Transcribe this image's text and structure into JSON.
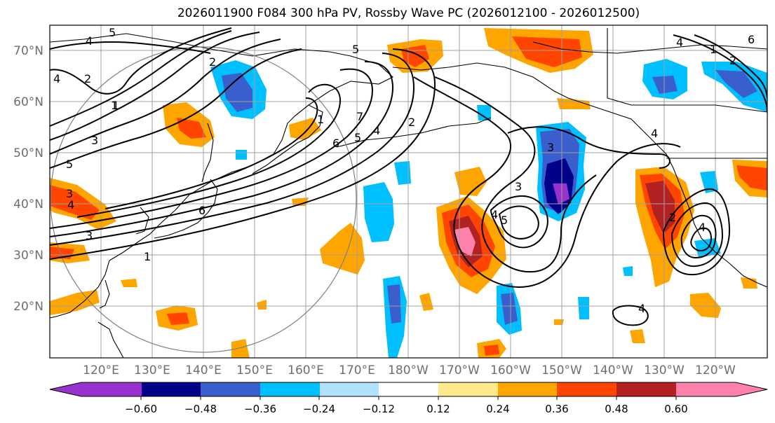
{
  "title": "2026011900 F084 300 hPa PV, Rossby Wave PC (2026012100 - 2026012500)",
  "latitude_labels": [
    "70°N",
    "60°N",
    "50°N",
    "40°N",
    "30°N",
    "20°N"
  ],
  "longitude_labels": [
    "120°E",
    "130°E",
    "140°E",
    "150°E",
    "160°E",
    "170°E",
    "180°W",
    "170°W",
    "160°W",
    "150°W",
    "140°W",
    "130°W",
    "120°W"
  ],
  "colorbar": {
    "ticks": [
      "−0.60",
      "−0.48",
      "−0.36",
      "−0.24",
      "−0.12",
      "0.12",
      "0.24",
      "0.36",
      "0.48",
      "0.60"
    ],
    "colors": [
      "#9932cc",
      "#00008b",
      "#3a5fcd",
      "#00bfff",
      "#b0e2ff",
      "#ffffff",
      "#ffe98a",
      "#ffa500",
      "#ff4500",
      "#b22222",
      "#ff82ab"
    ]
  },
  "contour_labels": [
    "4",
    "5",
    "2",
    "1",
    "2",
    "1",
    "4",
    "5",
    "6",
    "7",
    "5",
    "4",
    "2",
    "3",
    "3",
    "4",
    "5",
    "3",
    "4",
    "1",
    "3",
    "6",
    "1",
    "2",
    "4",
    "3",
    "4",
    "6",
    "1",
    "2",
    "4",
    "5",
    "4"
  ]
}
